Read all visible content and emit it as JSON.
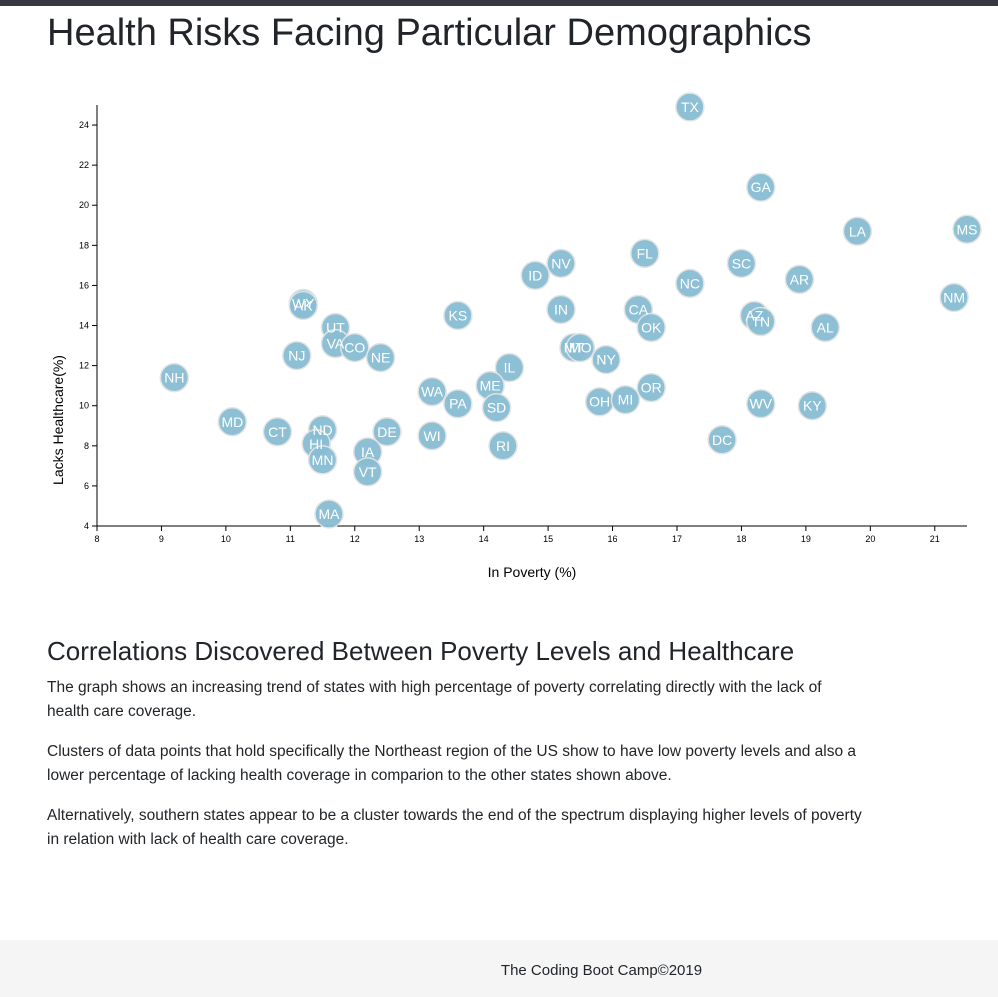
{
  "header": {
    "title": "Health Risks Facing Particular Demographics"
  },
  "article": {
    "heading": "Correlations Discovered Between Poverty Levels and Healthcare",
    "paragraphs": [
      "The graph shows an increasing trend of states with high percentage of poverty correlating directly with the lack of health care coverage.",
      "Clusters of data points that hold specifically the Northeast region of the US show to have low poverty levels and also a lower percentage of lacking health coverage in comparion to the other states shown above.",
      "Alternatively, southern states appear to be a cluster towards the end of the spectrum displaying higher levels of poverty in relation with lack of health care coverage."
    ]
  },
  "footer": {
    "text": "The Coding Boot Camp©2019"
  },
  "chart_data": {
    "type": "scatter",
    "title": "",
    "xlabel": "In Poverty (%)",
    "ylabel": "Lacks Healthcare(%)",
    "xlim": [
      8,
      21.5
    ],
    "ylim": [
      4,
      25
    ],
    "xticks": [
      8,
      9,
      10,
      11,
      12,
      13,
      14,
      15,
      16,
      17,
      18,
      19,
      20,
      21
    ],
    "yticks": [
      4,
      6,
      8,
      10,
      12,
      14,
      16,
      18,
      20,
      22,
      24
    ],
    "grid": false,
    "marker_color": "#89bdd3",
    "label_color": "#ffffff",
    "points": [
      {
        "label": "TX",
        "x": 17.2,
        "y": 24.9
      },
      {
        "label": "GA",
        "x": 18.3,
        "y": 20.9
      },
      {
        "label": "LA",
        "x": 19.8,
        "y": 18.7
      },
      {
        "label": "MS",
        "x": 21.5,
        "y": 18.8
      },
      {
        "label": "FL",
        "x": 16.5,
        "y": 17.6
      },
      {
        "label": "SC",
        "x": 18.0,
        "y": 17.1
      },
      {
        "label": "NV",
        "x": 15.2,
        "y": 17.1
      },
      {
        "label": "ID",
        "x": 14.8,
        "y": 16.5
      },
      {
        "label": "NC",
        "x": 17.2,
        "y": 16.1
      },
      {
        "label": "AR",
        "x": 18.9,
        "y": 16.3
      },
      {
        "label": "NM",
        "x": 21.3,
        "y": 15.4
      },
      {
        "label": "WY",
        "x": 11.2,
        "y": 15.1
      },
      {
        "label": "AK",
        "x": 11.2,
        "y": 15.0
      },
      {
        "label": "IN",
        "x": 15.2,
        "y": 14.8
      },
      {
        "label": "CA",
        "x": 16.4,
        "y": 14.8
      },
      {
        "label": "KS",
        "x": 13.6,
        "y": 14.5
      },
      {
        "label": "AZ",
        "x": 18.2,
        "y": 14.5
      },
      {
        "label": "TN",
        "x": 18.3,
        "y": 14.2
      },
      {
        "label": "OK",
        "x": 16.6,
        "y": 13.9
      },
      {
        "label": "UT",
        "x": 11.7,
        "y": 13.9
      },
      {
        "label": "AL",
        "x": 19.3,
        "y": 13.9
      },
      {
        "label": "VA",
        "x": 11.7,
        "y": 13.1
      },
      {
        "label": "CO",
        "x": 12.0,
        "y": 12.9
      },
      {
        "label": "MT",
        "x": 15.4,
        "y": 12.9
      },
      {
        "label": "MO",
        "x": 15.5,
        "y": 12.9
      },
      {
        "label": "NJ",
        "x": 11.1,
        "y": 12.5
      },
      {
        "label": "NE",
        "x": 12.4,
        "y": 12.4
      },
      {
        "label": "NY",
        "x": 15.9,
        "y": 12.3
      },
      {
        "label": "IL",
        "x": 14.4,
        "y": 11.9
      },
      {
        "label": "NH",
        "x": 9.2,
        "y": 11.4
      },
      {
        "label": "ME",
        "x": 14.1,
        "y": 11.0
      },
      {
        "label": "WA",
        "x": 13.2,
        "y": 10.7
      },
      {
        "label": "OR",
        "x": 16.6,
        "y": 10.9
      },
      {
        "label": "PA",
        "x": 13.6,
        "y": 10.1
      },
      {
        "label": "SD",
        "x": 14.2,
        "y": 9.9
      },
      {
        "label": "OH",
        "x": 15.8,
        "y": 10.2
      },
      {
        "label": "MI",
        "x": 16.2,
        "y": 10.3
      },
      {
        "label": "WV",
        "x": 18.3,
        "y": 10.1
      },
      {
        "label": "KY",
        "x": 19.1,
        "y": 10.0
      },
      {
        "label": "MD",
        "x": 10.1,
        "y": 9.2
      },
      {
        "label": "CT",
        "x": 10.8,
        "y": 8.7
      },
      {
        "label": "ND",
        "x": 11.5,
        "y": 8.8
      },
      {
        "label": "DE",
        "x": 12.5,
        "y": 8.7
      },
      {
        "label": "WI",
        "x": 13.2,
        "y": 8.5
      },
      {
        "label": "HI",
        "x": 11.4,
        "y": 8.1
      },
      {
        "label": "DC",
        "x": 17.7,
        "y": 8.3
      },
      {
        "label": "RI",
        "x": 14.3,
        "y": 8.0
      },
      {
        "label": "IA",
        "x": 12.2,
        "y": 7.7
      },
      {
        "label": "MN",
        "x": 11.5,
        "y": 7.3
      },
      {
        "label": "VT",
        "x": 12.2,
        "y": 6.7
      },
      {
        "label": "MA",
        "x": 11.6,
        "y": 4.6
      }
    ]
  }
}
